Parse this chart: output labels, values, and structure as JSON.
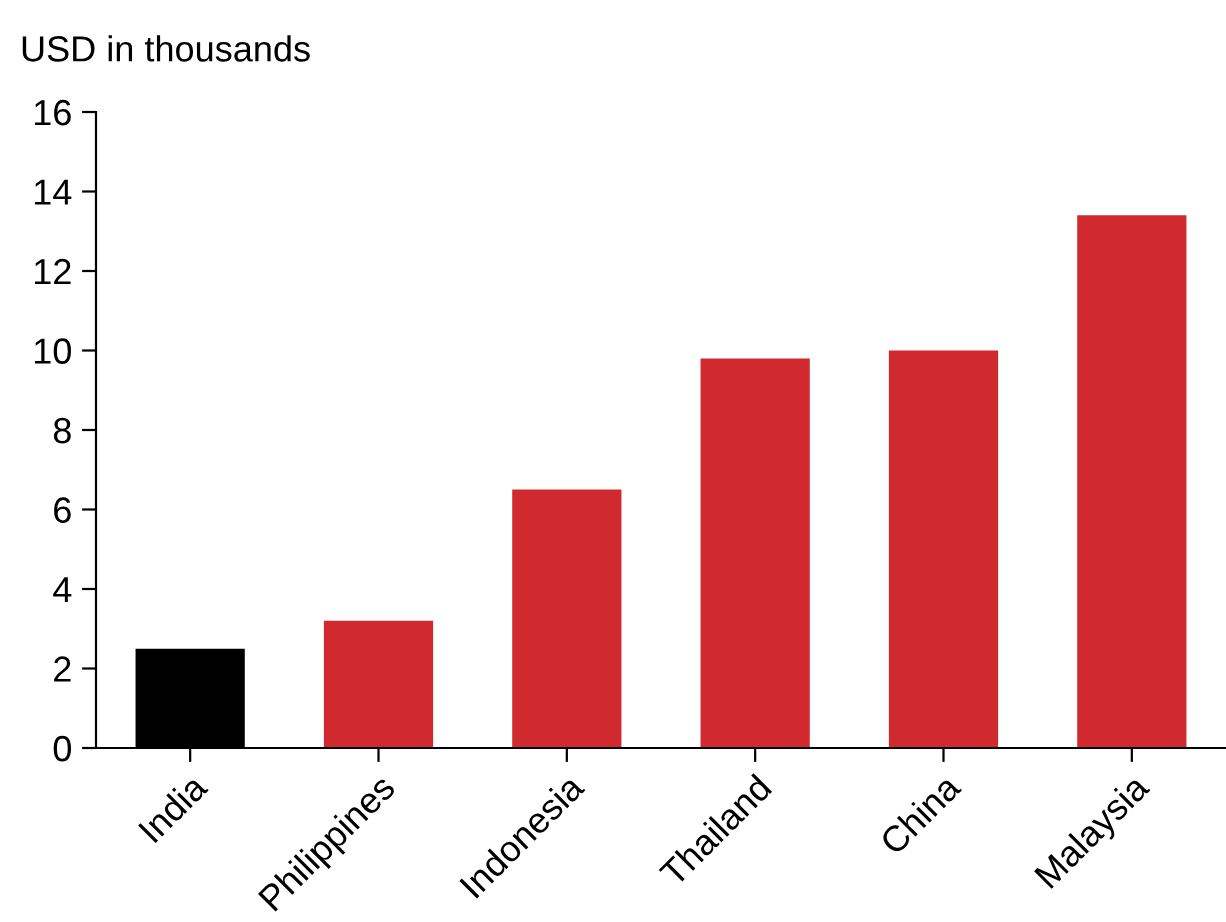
{
  "chart_data": {
    "type": "bar",
    "ylabel": "USD in thousands",
    "categories": [
      "India",
      "Philippines",
      "Indonesia",
      "Thailand",
      "China",
      "Malaysia"
    ],
    "values": [
      2.5,
      3.2,
      6.5,
      9.8,
      10.0,
      13.4
    ],
    "colors": [
      "#000000",
      "#d12a2e",
      "#d12a2e",
      "#d12a2e",
      "#d12a2e",
      "#d12a2e"
    ],
    "ylim": [
      0,
      16
    ],
    "yticks": [
      0,
      2,
      4,
      6,
      8,
      10,
      12,
      14,
      16
    ],
    "grid": false
  }
}
